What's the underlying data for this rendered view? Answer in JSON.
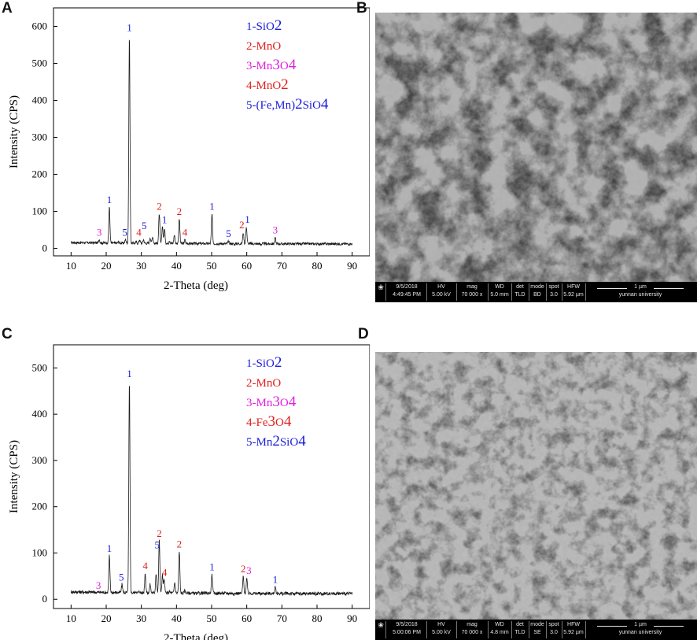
{
  "panels": {
    "A": "A",
    "B": "B",
    "C": "C",
    "D": "D"
  },
  "chart_data": [
    {
      "type": "line",
      "panel": "A",
      "title": "",
      "xlabel": "2-Theta (deg)",
      "ylabel": "Intensity (CPS)",
      "xlim": [
        5,
        95
      ],
      "ylim": [
        -20,
        650
      ],
      "xticks": [
        10,
        20,
        30,
        40,
        50,
        60,
        70,
        80,
        90
      ],
      "yticks": [
        0,
        100,
        200,
        300,
        400,
        500,
        600
      ],
      "legend": [
        {
          "num": "1-",
          "base": "SiO",
          "sub": "2",
          "color": "#1a1adb"
        },
        {
          "num": "2-",
          "base": "MnO",
          "sub": "",
          "color": "#e0201e"
        },
        {
          "num": "3-",
          "base": "Mn",
          "mid": "3",
          "base2": "O",
          "sub": "4",
          "color": "#e020e0"
        },
        {
          "num": "4-",
          "base": "MnO",
          "sub": "2",
          "color": "#e0201e"
        },
        {
          "num": "5-",
          "base": "(Fe,Mn)",
          "mid": "2",
          "base2": "SiO",
          "sub": "4",
          "color": "#1a1adb"
        }
      ],
      "peaks": [
        [
          18.0,
          22
        ],
        [
          20.9,
          110
        ],
        [
          23.5,
          15
        ],
        [
          25.5,
          22
        ],
        [
          26.6,
          575
        ],
        [
          28.5,
          15
        ],
        [
          29.5,
          22
        ],
        [
          30.6,
          22
        ],
        [
          32.5,
          28
        ],
        [
          33.2,
          30
        ],
        [
          35.1,
          92
        ],
        [
          36.0,
          60
        ],
        [
          36.6,
          50
        ],
        [
          38.0,
          20
        ],
        [
          39.4,
          35
        ],
        [
          40.8,
          78
        ],
        [
          42.4,
          22
        ],
        [
          45.8,
          12
        ],
        [
          50.1,
          92
        ],
        [
          54.8,
          18
        ],
        [
          56.5,
          10
        ],
        [
          59.0,
          42
        ],
        [
          59.9,
          57
        ],
        [
          64.0,
          10
        ],
        [
          68.1,
          28
        ],
        [
          73.5,
          10
        ],
        [
          75.5,
          12
        ],
        [
          79.8,
          12
        ],
        [
          81.5,
          12
        ]
      ],
      "labels": [
        {
          "x": 26.6,
          "y": 575,
          "text": "1",
          "color": "#1a1adb"
        },
        {
          "x": 18.0,
          "y": 22,
          "text": "3",
          "color": "#e020e0"
        },
        {
          "x": 20.9,
          "y": 110,
          "text": "1",
          "color": "#1a1adb"
        },
        {
          "x": 25.3,
          "y": 22,
          "text": "5",
          "color": "#1a1adb"
        },
        {
          "x": 29.3,
          "y": 22,
          "text": "4",
          "color": "#e0201e"
        },
        {
          "x": 30.8,
          "y": 40,
          "text": "5",
          "color": "#1a1adb"
        },
        {
          "x": 35.1,
          "y": 92,
          "text": "2",
          "color": "#e0201e"
        },
        {
          "x": 36.6,
          "y": 55,
          "text": "1",
          "color": "#1a1adb"
        },
        {
          "x": 40.8,
          "y": 78,
          "text": "2",
          "color": "#e0201e"
        },
        {
          "x": 42.4,
          "y": 22,
          "text": "4",
          "color": "#e0201e"
        },
        {
          "x": 50.1,
          "y": 92,
          "text": "1",
          "color": "#1a1adb"
        },
        {
          "x": 54.8,
          "y": 18,
          "text": "5",
          "color": "#1a1adb"
        },
        {
          "x": 58.6,
          "y": 42,
          "text": "2",
          "color": "#e0201e"
        },
        {
          "x": 60.2,
          "y": 57,
          "text": "1",
          "color": "#1a1adb"
        },
        {
          "x": 68.1,
          "y": 28,
          "text": "3",
          "color": "#e020e0"
        }
      ]
    },
    {
      "type": "line",
      "panel": "C",
      "title": "",
      "xlabel": "2-Theta (deg)",
      "ylabel": "Intensity (CPS)",
      "xlim": [
        5,
        95
      ],
      "ylim": [
        -20,
        550
      ],
      "xticks": [
        10,
        20,
        30,
        40,
        50,
        60,
        70,
        80,
        90
      ],
      "yticks": [
        0,
        100,
        200,
        300,
        400,
        500
      ],
      "legend": [
        {
          "num": "1-",
          "base": "SiO",
          "sub": "2",
          "color": "#1a1adb"
        },
        {
          "num": "2-",
          "base": "MnO",
          "sub": "",
          "color": "#e0201e"
        },
        {
          "num": "3-",
          "base": "Mn",
          "mid": "3",
          "base2": "O",
          "sub": "4",
          "color": "#e020e0"
        },
        {
          "num": "4-",
          "base": "Fe",
          "mid": "3",
          "base2": "O",
          "sub": "4",
          "color": "#e0201e"
        },
        {
          "num": "5-",
          "base": "Mn",
          "mid": "2",
          "base2": "SiO",
          "sub": "4",
          "color": "#1a1adb"
        }
      ],
      "peaks": [
        [
          17.8,
          12
        ],
        [
          20.9,
          92
        ],
        [
          23.5,
          12
        ],
        [
          24.5,
          30
        ],
        [
          26.6,
          470
        ],
        [
          28.5,
          15
        ],
        [
          29.5,
          15
        ],
        [
          31.1,
          55
        ],
        [
          32.5,
          30
        ],
        [
          34.2,
          55
        ],
        [
          35.1,
          125
        ],
        [
          36.0,
          50
        ],
        [
          36.5,
          40
        ],
        [
          38.0,
          15
        ],
        [
          39.5,
          35
        ],
        [
          40.8,
          102
        ],
        [
          42.4,
          18
        ],
        [
          45.8,
          10
        ],
        [
          50.1,
          52
        ],
        [
          54.8,
          12
        ],
        [
          56.5,
          10
        ],
        [
          59.0,
          48
        ],
        [
          60.0,
          45
        ],
        [
          64.0,
          10
        ],
        [
          68.1,
          25
        ],
        [
          70.5,
          10
        ],
        [
          73.5,
          10
        ],
        [
          75.5,
          10
        ],
        [
          79.8,
          10
        ],
        [
          81.5,
          10
        ]
      ],
      "labels": [
        {
          "x": 26.6,
          "y": 470,
          "text": "1",
          "color": "#1a1adb"
        },
        {
          "x": 17.8,
          "y": 12,
          "text": "3",
          "color": "#e020e0"
        },
        {
          "x": 20.9,
          "y": 92,
          "text": "1",
          "color": "#1a1adb"
        },
        {
          "x": 24.3,
          "y": 30,
          "text": "5",
          "color": "#1a1adb"
        },
        {
          "x": 31.1,
          "y": 55,
          "text": "4",
          "color": "#e0201e"
        },
        {
          "x": 34.5,
          "y": 100,
          "text": "5",
          "color": "#1a1adb"
        },
        {
          "x": 35.1,
          "y": 125,
          "text": "2",
          "color": "#e0201e"
        },
        {
          "x": 36.6,
          "y": 40,
          "text": "4",
          "color": "#e0201e"
        },
        {
          "x": 40.8,
          "y": 102,
          "text": "2",
          "color": "#e0201e"
        },
        {
          "x": 50.1,
          "y": 52,
          "text": "1",
          "color": "#1a1adb"
        },
        {
          "x": 59.0,
          "y": 48,
          "text": "2",
          "color": "#e0201e"
        },
        {
          "x": 60.6,
          "y": 45,
          "text": "3",
          "color": "#e020e0"
        },
        {
          "x": 68.1,
          "y": 25,
          "text": "1",
          "color": "#1a1adb"
        }
      ]
    }
  ],
  "sem": [
    {
      "panel": "B",
      "date": "9/5/2018",
      "time": "4:49:45 PM",
      "hv_label": "HV",
      "hv": "5.00 kV",
      "mag_label": "mag",
      "mag": "70 000 x",
      "wd_label": "WD",
      "wd": "5.0 mm",
      "det_label": "det",
      "det": "TLD",
      "mode_label": "mode",
      "mode": "BD",
      "spot_label": "spot",
      "spot": "3.0",
      "hfw_label": "HFW",
      "hfw": "5.92 µm",
      "scale": "1 µm",
      "institution": "yunnan university"
    },
    {
      "panel": "D",
      "date": "9/5/2018",
      "time": "5:00:06 PM",
      "hv_label": "HV",
      "hv": "5.00 kV",
      "mag_label": "mag",
      "mag": "70 000 x",
      "wd_label": "WD",
      "wd": "4.8 mm",
      "det_label": "det",
      "det": "TLD",
      "mode_label": "mode",
      "mode": "SE",
      "spot_label": "spot",
      "spot": "3.0",
      "hfw_label": "HFW",
      "hfw": "5.92 µm",
      "scale": "1 µm",
      "institution": "yunnan university"
    }
  ]
}
